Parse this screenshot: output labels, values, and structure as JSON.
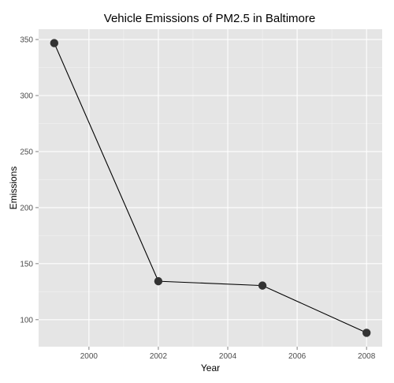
{
  "chart_data": {
    "type": "line",
    "title": "Vehicle Emissions of PM2.5 in Baltimore",
    "xlabel": "Year",
    "ylabel": "Emissions",
    "x": [
      1999,
      2002,
      2005,
      2008
    ],
    "series": [
      {
        "values": [
          346.82,
          134.31,
          130.43,
          88.28
        ]
      }
    ],
    "x_ticks": [
      "2000",
      "2002",
      "2004",
      "2006",
      "2008"
    ],
    "y_ticks": [
      "100",
      "150",
      "200",
      "250",
      "300",
      "350"
    ],
    "xlim": [
      1998.55,
      2008.45
    ],
    "ylim": [
      75.9,
      359.2
    ],
    "grid": true,
    "legend": "none",
    "colors": {
      "panel_background": "#e5e5e5",
      "grid_major": "#ffffff",
      "grid_minor": "#f2f2f2",
      "line": "#000000",
      "point": "#333333",
      "tick_label": "#4d4d4d"
    }
  }
}
